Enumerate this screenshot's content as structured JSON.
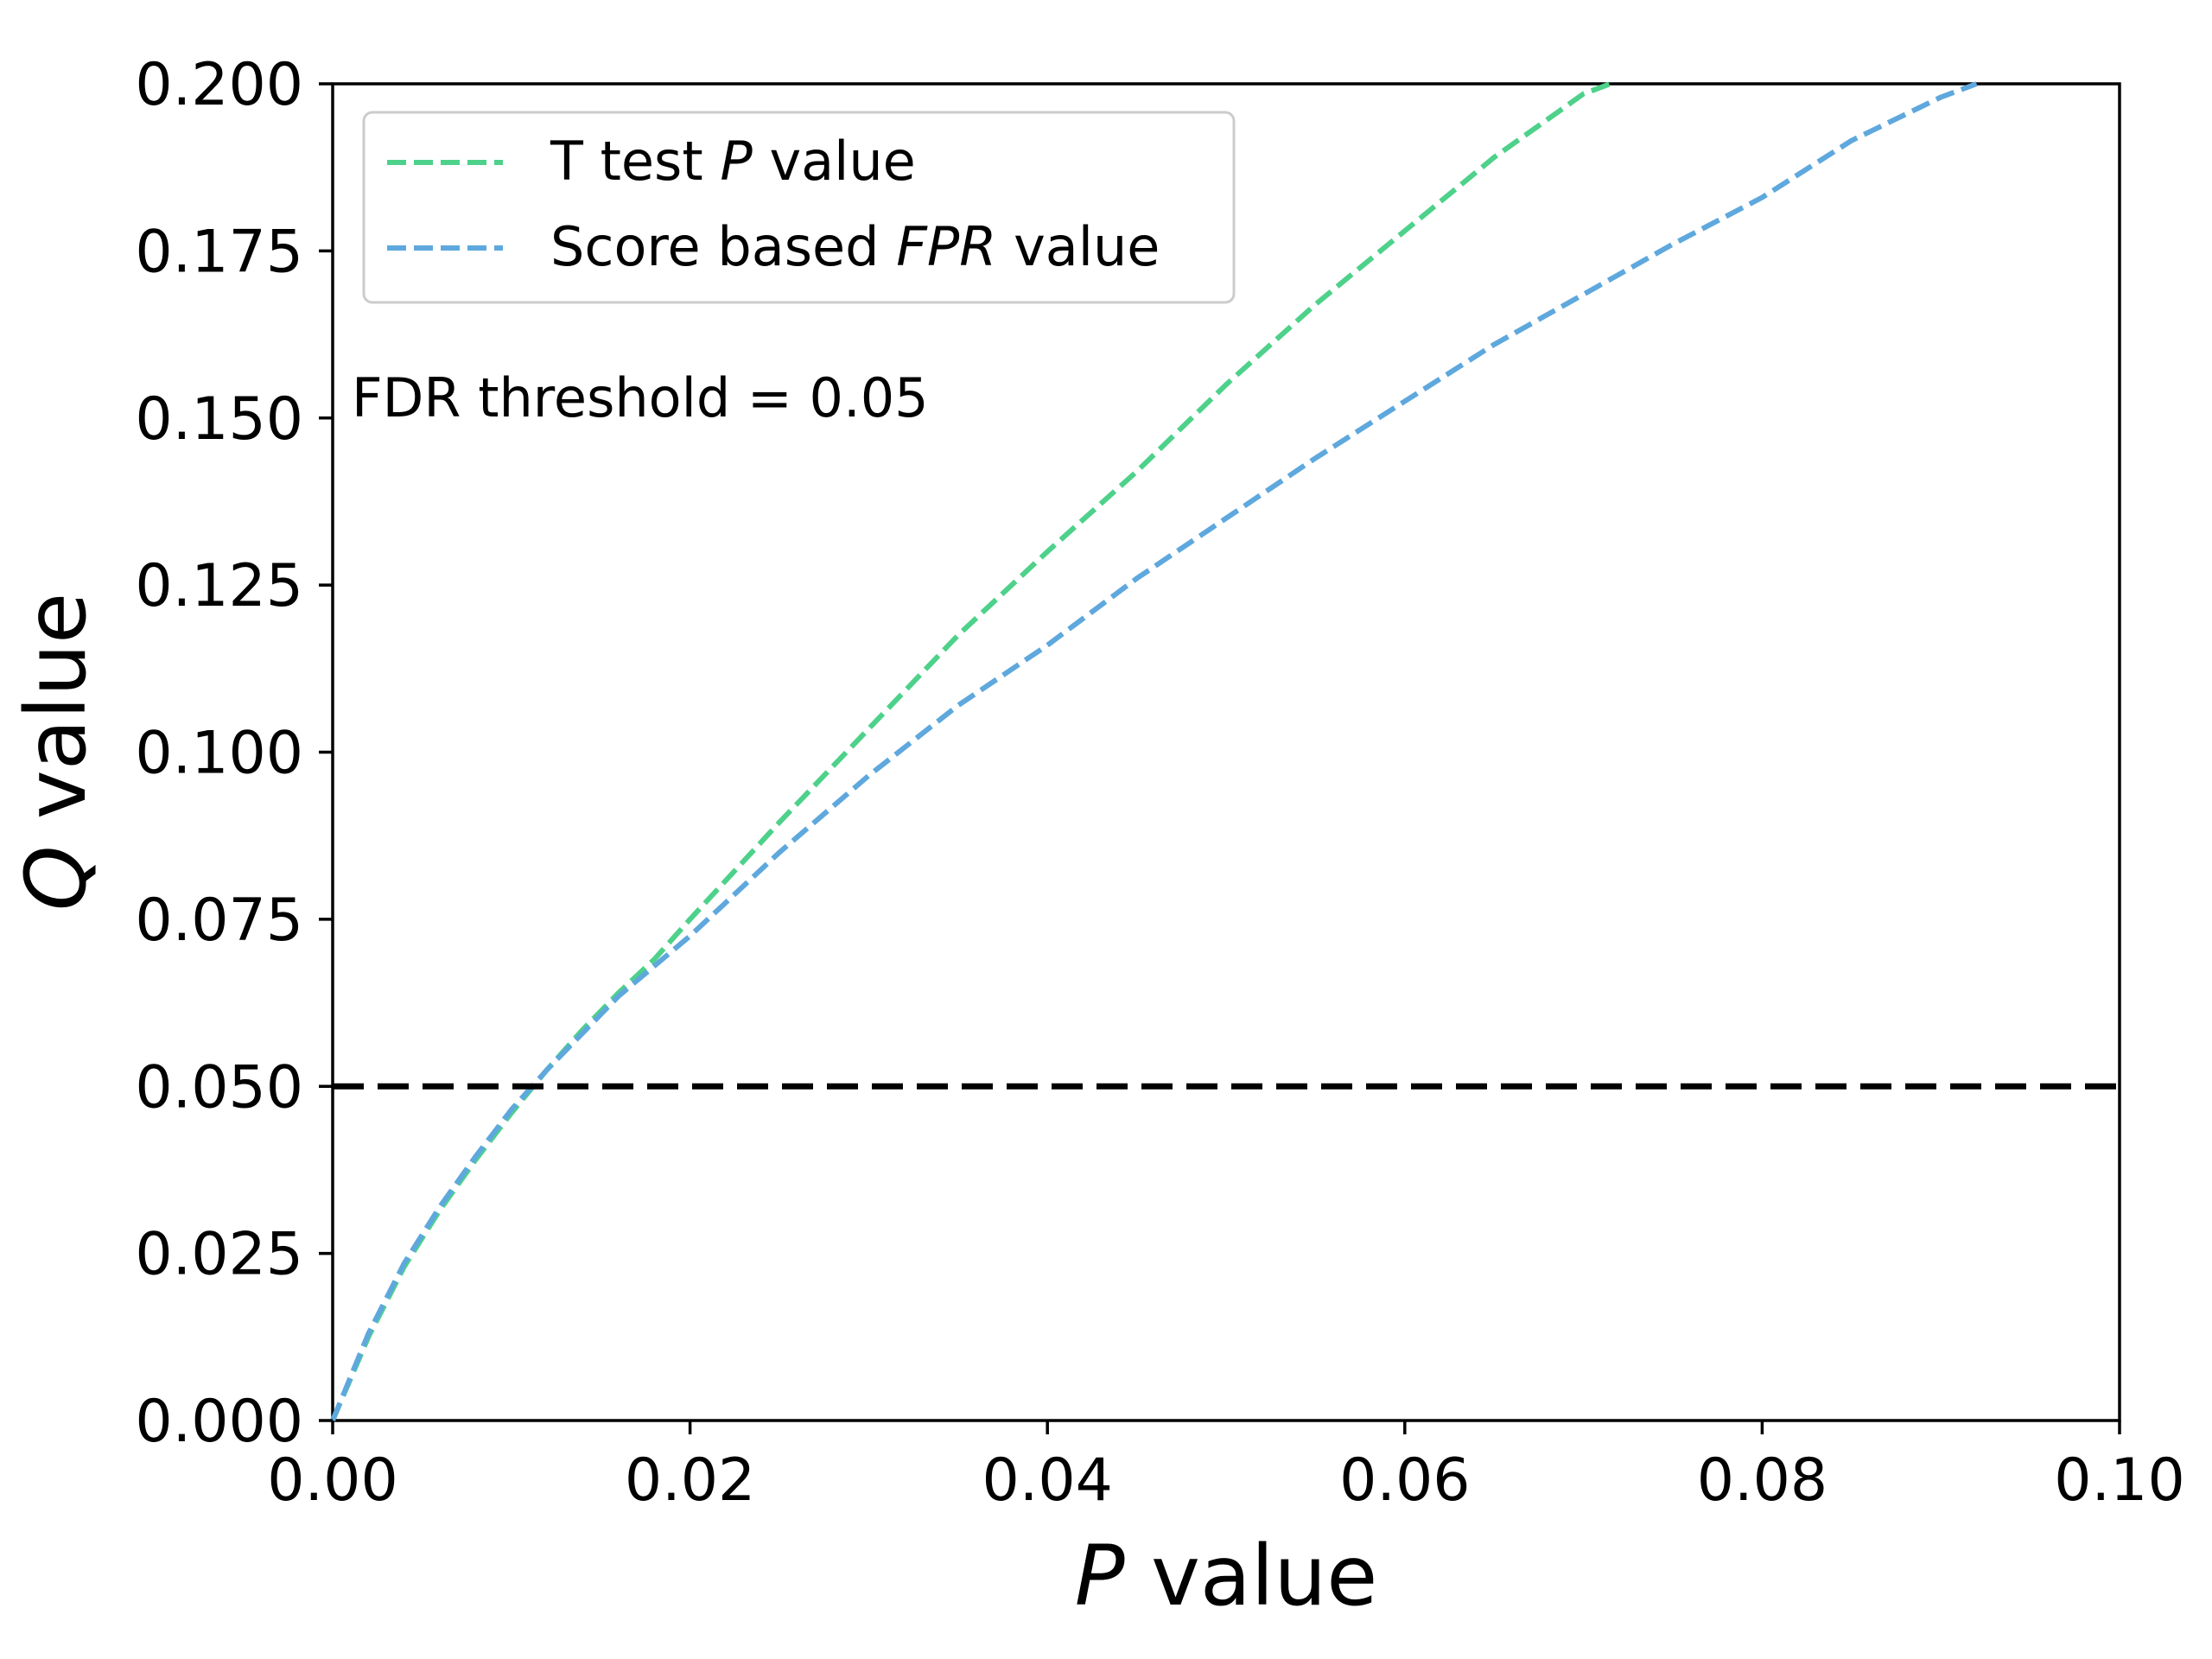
{
  "chart_data": {
    "type": "line",
    "xlabel": {
      "italic": "P",
      "rest": " value"
    },
    "ylabel": {
      "italic": "Q",
      "rest": " value"
    },
    "xlim": [
      0,
      0.1
    ],
    "ylim": [
      0,
      0.2
    ],
    "xticks": [
      "0.00",
      "0.02",
      "0.04",
      "0.06",
      "0.08",
      "0.10"
    ],
    "yticks": [
      "0.000",
      "0.025",
      "0.050",
      "0.075",
      "0.100",
      "0.125",
      "0.150",
      "0.175",
      "0.200"
    ],
    "grid": false,
    "legend_position": "top-left",
    "annotation": "FDR threshold = 0.05",
    "threshold": {
      "y": 0.05,
      "color": "#000000",
      "style": "dashed"
    },
    "series": [
      {
        "name": "T test P value",
        "name_parts": [
          {
            "text": "T test ",
            "italic": false
          },
          {
            "text": "P",
            "italic": true
          },
          {
            "text": " value",
            "italic": false
          }
        ],
        "color": "#4ed18a",
        "style": "dashed",
        "x": [
          0,
          0.002,
          0.004,
          0.006,
          0.008,
          0.01,
          0.012,
          0.014,
          0.016,
          0.018,
          0.02,
          0.025,
          0.03,
          0.035,
          0.04,
          0.045,
          0.05,
          0.055,
          0.06,
          0.065,
          0.07,
          0.0715
        ],
        "y": [
          0,
          0.0125,
          0.023,
          0.0315,
          0.039,
          0.046,
          0.0525,
          0.0585,
          0.064,
          0.069,
          0.075,
          0.0895,
          0.1035,
          0.1175,
          0.13,
          0.142,
          0.155,
          0.167,
          0.178,
          0.189,
          0.1985,
          0.2
        ]
      },
      {
        "name": "Score based FPR value",
        "name_parts": [
          {
            "text": "Score based ",
            "italic": false
          },
          {
            "text": "FPR",
            "italic": true
          },
          {
            "text": " value",
            "italic": false
          }
        ],
        "color": "#5ea8dd",
        "style": "dashed",
        "x": [
          0,
          0.002,
          0.004,
          0.006,
          0.008,
          0.01,
          0.012,
          0.014,
          0.016,
          0.018,
          0.02,
          0.025,
          0.03,
          0.035,
          0.04,
          0.045,
          0.05,
          0.055,
          0.06,
          0.065,
          0.07,
          0.075,
          0.08,
          0.085,
          0.09,
          0.092
        ],
        "y": [
          0,
          0.013,
          0.0235,
          0.032,
          0.0395,
          0.0465,
          0.0525,
          0.058,
          0.0635,
          0.068,
          0.0725,
          0.085,
          0.0965,
          0.107,
          0.116,
          0.126,
          0.135,
          0.144,
          0.1525,
          0.161,
          0.1685,
          0.176,
          0.183,
          0.1915,
          0.198,
          0.2
        ]
      }
    ]
  }
}
